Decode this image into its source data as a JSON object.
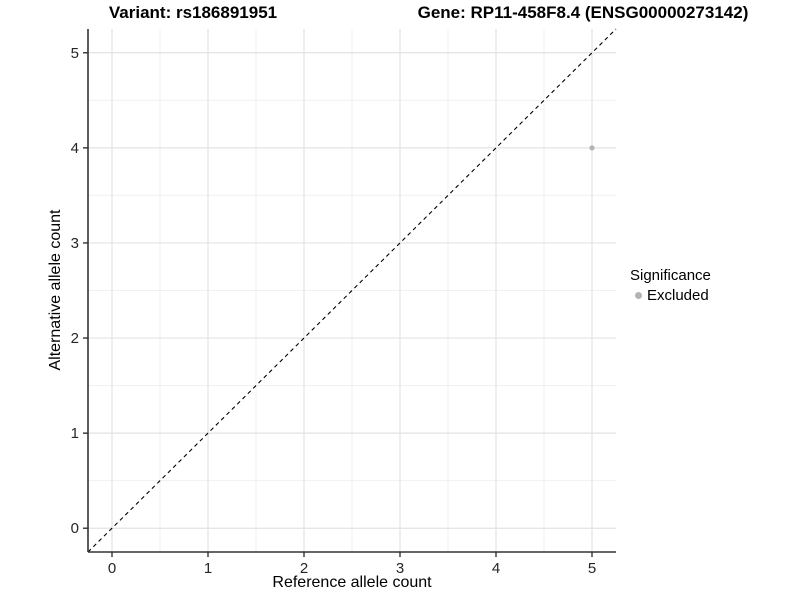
{
  "header": {
    "variant_title": "Variant: rs186891951",
    "gene_title": "Gene: RP11-458F8.4 (ENSG00000273142)"
  },
  "chart_data": {
    "type": "scatter",
    "xlabel": "Reference allele count",
    "ylabel": "Alternative allele count",
    "xlim": [
      -0.25,
      5.25
    ],
    "ylim": [
      -0.25,
      5.25
    ],
    "xticks": [
      0,
      1,
      2,
      3,
      4,
      5
    ],
    "yticks": [
      0,
      1,
      2,
      3,
      4,
      5
    ],
    "minor_xticks": [
      0.5,
      1.5,
      2.5,
      3.5,
      4.5
    ],
    "minor_yticks": [
      0.5,
      1.5,
      2.5,
      3.5,
      4.5
    ],
    "grid": {
      "major": true,
      "minor": true
    },
    "reference_line": {
      "type": "identity",
      "slope": 1,
      "intercept": 0,
      "style": "dashed",
      "color": "#000000"
    },
    "series": [
      {
        "name": "Excluded",
        "color": "#b4b4b4",
        "points": [
          {
            "x": 5,
            "y": 4
          }
        ]
      }
    ],
    "legend": {
      "title": "Significance",
      "position": "right",
      "items": [
        {
          "label": "Excluded",
          "color": "#b4b4b4",
          "shape": "circle"
        }
      ]
    }
  },
  "colors": {
    "background": "#ffffff",
    "grid_major": "#e3e3e3",
    "grid_minor": "#f0f0f0",
    "axis_line": "#333333",
    "tick_mark": "#333333",
    "tick_label": "#262626",
    "title": "#000000"
  }
}
